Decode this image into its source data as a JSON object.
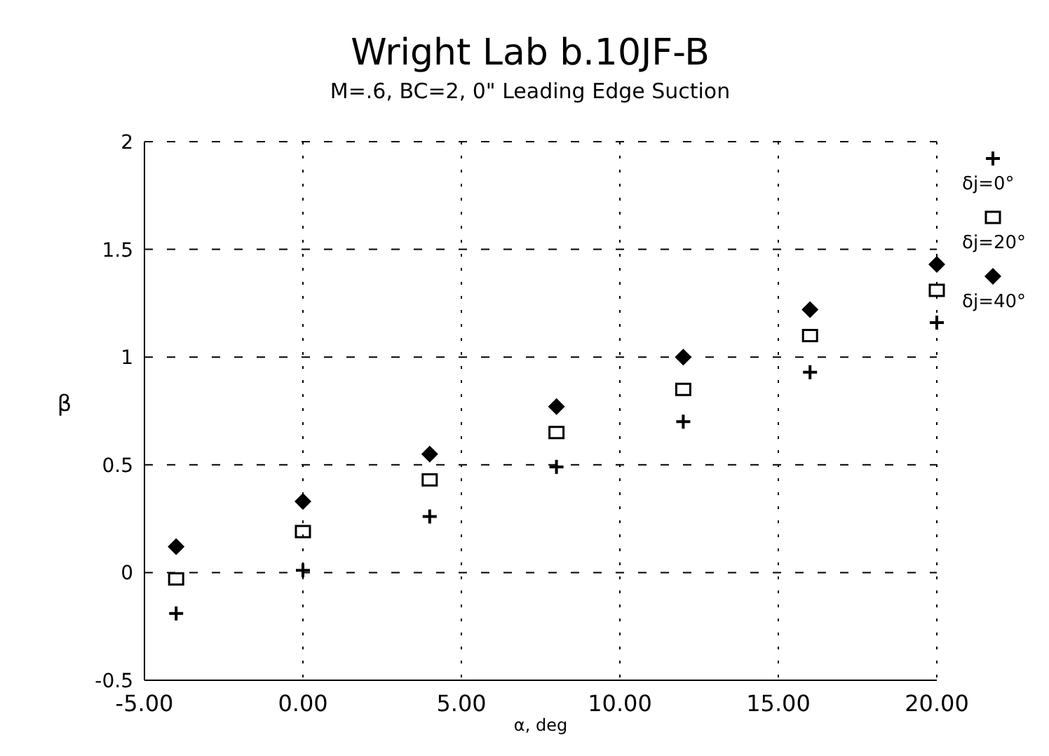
{
  "chart_data": {
    "type": "scatter",
    "title": "Wright Lab b.10JF-B",
    "subtitle": "M=.6, BC=2, 0\" Leading Edge Suction",
    "xlabel": "α, deg",
    "ylabel": "β",
    "x": [
      -4,
      0,
      4,
      8,
      12,
      16,
      20
    ],
    "series": [
      {
        "name": "δj=0°",
        "color": "#000000",
        "marker": "cross",
        "values": [
          -0.19,
          0.01,
          0.26,
          0.49,
          0.7,
          0.93,
          1.16
        ]
      },
      {
        "name": "δj=20°",
        "color": "#000000",
        "marker": "square",
        "values": [
          -0.03,
          0.19,
          0.43,
          0.65,
          0.85,
          1.1,
          1.31
        ]
      },
      {
        "name": "δj=40°",
        "color": "#000000",
        "marker": "diamond",
        "values": [
          0.12,
          0.33,
          0.55,
          0.77,
          1.0,
          1.22,
          1.43
        ]
      }
    ],
    "xlim": [
      -5,
      20
    ],
    "xticks": [
      {
        "value": -5,
        "label": "-5.00"
      },
      {
        "value": 0,
        "label": "0.00"
      },
      {
        "value": 5,
        "label": "5.00"
      },
      {
        "value": 10,
        "label": "10.00"
      },
      {
        "value": 15,
        "label": "15.00"
      },
      {
        "value": 20,
        "label": "20.00"
      }
    ],
    "ylim": [
      -0.5,
      2
    ],
    "yticks": [
      -0.5,
      0,
      0.5,
      1,
      1.5,
      2
    ],
    "grid": true,
    "legend": "right"
  }
}
